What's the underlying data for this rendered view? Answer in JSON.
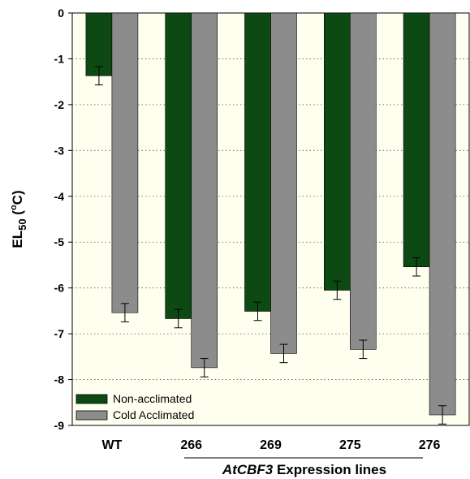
{
  "chart_data": {
    "type": "bar",
    "categories": [
      "WT",
      "266",
      "269",
      "275",
      "276"
    ],
    "series": [
      {
        "name": "Non-acclimated",
        "color": "#0d4a13",
        "values": [
          -1.37,
          -6.67,
          -6.51,
          -6.05,
          -5.54
        ],
        "errors": [
          0.2,
          0.2,
          0.2,
          0.2,
          0.2
        ]
      },
      {
        "name": "Cold Acclimated",
        "color": "#8c8c8c",
        "values": [
          -6.54,
          -7.74,
          -7.43,
          -7.34,
          -8.77
        ],
        "errors": [
          0.2,
          0.2,
          0.2,
          0.2,
          0.2
        ]
      }
    ],
    "ylim": [
      -9,
      0
    ],
    "yticks": [
      "0",
      "-1",
      "-2",
      "-3",
      "-4",
      "-5",
      "-6",
      "-7",
      "-8",
      "-9"
    ],
    "ylabel": {
      "main": "EL",
      "sub": "50",
      "open": " (",
      "sup": "o",
      "unit": "C)"
    },
    "xlabel": {
      "italic": "AtCBF3",
      "rest": " Expression lines"
    },
    "grid": "horizontal dotted",
    "legend_position": "bottom-left",
    "plot_background": "#fffff0"
  }
}
